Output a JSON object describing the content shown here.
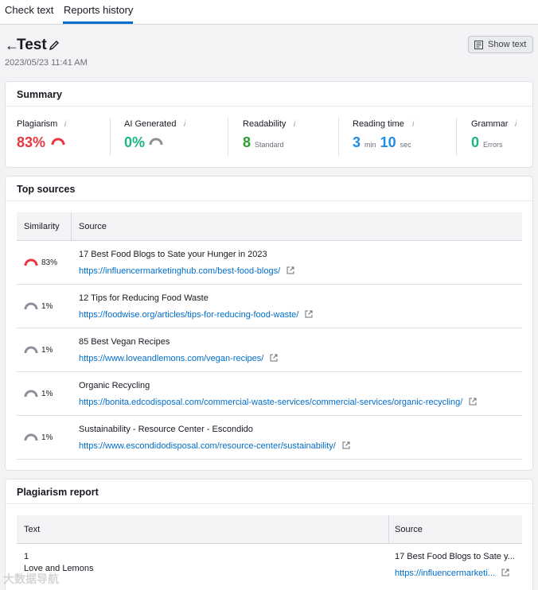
{
  "tabs": [
    {
      "label": "Check text",
      "active": false
    },
    {
      "label": "Reports history",
      "active": true
    }
  ],
  "accent_color": "#006dca",
  "header": {
    "back_icon": "arrow-left-icon",
    "title": "Test",
    "edit_icon": "pencil-icon",
    "date": "2023/05/23 11:41 AM",
    "show_text_label": "Show text",
    "show_text_icon": "document-icon"
  },
  "summary": {
    "title": "Summary",
    "plagiarism": {
      "label": "Plagiarism",
      "value": "83%",
      "gauge_fraction": 0.83,
      "color": "#e5373f"
    },
    "ai_generated": {
      "label": "AI Generated",
      "value": "0%",
      "gauge_fraction": 0.0,
      "color": "#1db683"
    },
    "readability": {
      "label": "Readability",
      "value": "8",
      "unit": "Standard",
      "color": "#2f9c2f"
    },
    "reading_time": {
      "label": "Reading time",
      "minutes": "3",
      "min_unit": "min",
      "seconds": "10",
      "sec_unit": "sec",
      "color": "#1e8ce5"
    },
    "grammar": {
      "label": "Grammar",
      "value": "0",
      "unit": "Errors",
      "color": "#1db683"
    },
    "info_icon": "info-icon"
  },
  "top_sources": {
    "title": "Top sources",
    "headers": {
      "similarity": "Similarity",
      "source": "Source"
    },
    "rows": [
      {
        "pct": "83%",
        "fraction": 0.83,
        "title": "17 Best Food Blogs to Sate your Hunger in 2023",
        "url": "https://influencermarketinghub.com/best-food-blogs/"
      },
      {
        "pct": "1%",
        "fraction": 0.01,
        "title": "12 Tips for Reducing Food Waste",
        "url": "https://foodwise.org/articles/tips-for-reducing-food-waste/"
      },
      {
        "pct": "1%",
        "fraction": 0.01,
        "title": "85 Best Vegan Recipes",
        "url": "https://www.loveandlemons.com/vegan-recipes/"
      },
      {
        "pct": "1%",
        "fraction": 0.01,
        "title": "Organic Recycling",
        "url": "https://bonita.edcodisposal.com/commercial-waste-services/commercial-services/organic-recycling/"
      },
      {
        "pct": "1%",
        "fraction": 0.01,
        "title": "Sustainability - Resource Center - Escondido",
        "url": "https://www.escondidodisposal.com/resource-center/sustainability/"
      }
    ]
  },
  "plagiarism_report": {
    "title": "Plagiarism report",
    "headers": {
      "text": "Text",
      "source": "Source"
    },
    "rows": [
      {
        "num": "1",
        "text": "Love and Lemons",
        "source_title": "17 Best Food Blogs to Sate y...",
        "source_url": "https://influencermarketi..."
      }
    ]
  },
  "watermark": "大数据导航"
}
